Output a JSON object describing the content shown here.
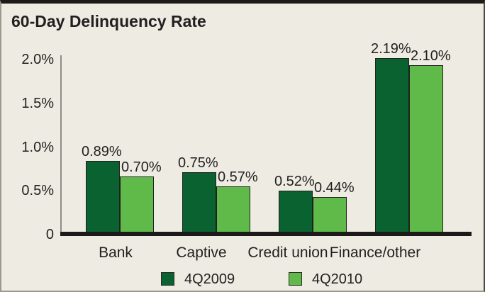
{
  "colors": {
    "background": "#eeebe2",
    "text": "#231f20",
    "axis_line": "#918e85",
    "baseline": "#1c1a18",
    "series_dark_green": "#0a6231",
    "series_light_green": "#5fba4a"
  },
  "chart_data": {
    "type": "bar",
    "title": "60-Day Delinquency Rate",
    "categories": [
      "Bank",
      "Captive",
      "Credit union",
      "Finance/other"
    ],
    "series": [
      {
        "name": "4Q2009",
        "color": "#0a6231",
        "values": [
          0.89,
          0.75,
          0.52,
          2.19
        ],
        "labels": [
          "0.89%",
          "0.75%",
          "0.52%",
          "2.19%"
        ]
      },
      {
        "name": "4Q2010",
        "color": "#5fba4a",
        "values": [
          0.7,
          0.57,
          0.44,
          2.1
        ],
        "labels": [
          "0.70%",
          "0.57%",
          "0.44%",
          "2.10%"
        ]
      }
    ],
    "yticks": [
      {
        "label": "2.0%",
        "value": 2.0
      },
      {
        "label": "1.5%",
        "value": 1.5
      },
      {
        "label": "1.0%",
        "value": 1.0
      },
      {
        "label": "0.5%",
        "value": 0.5
      },
      {
        "label": "0",
        "value": 0
      }
    ],
    "ylim": [
      0,
      2.2
    ],
    "xlabel": "",
    "ylabel": "",
    "grid": false,
    "legend_position": "bottom"
  }
}
